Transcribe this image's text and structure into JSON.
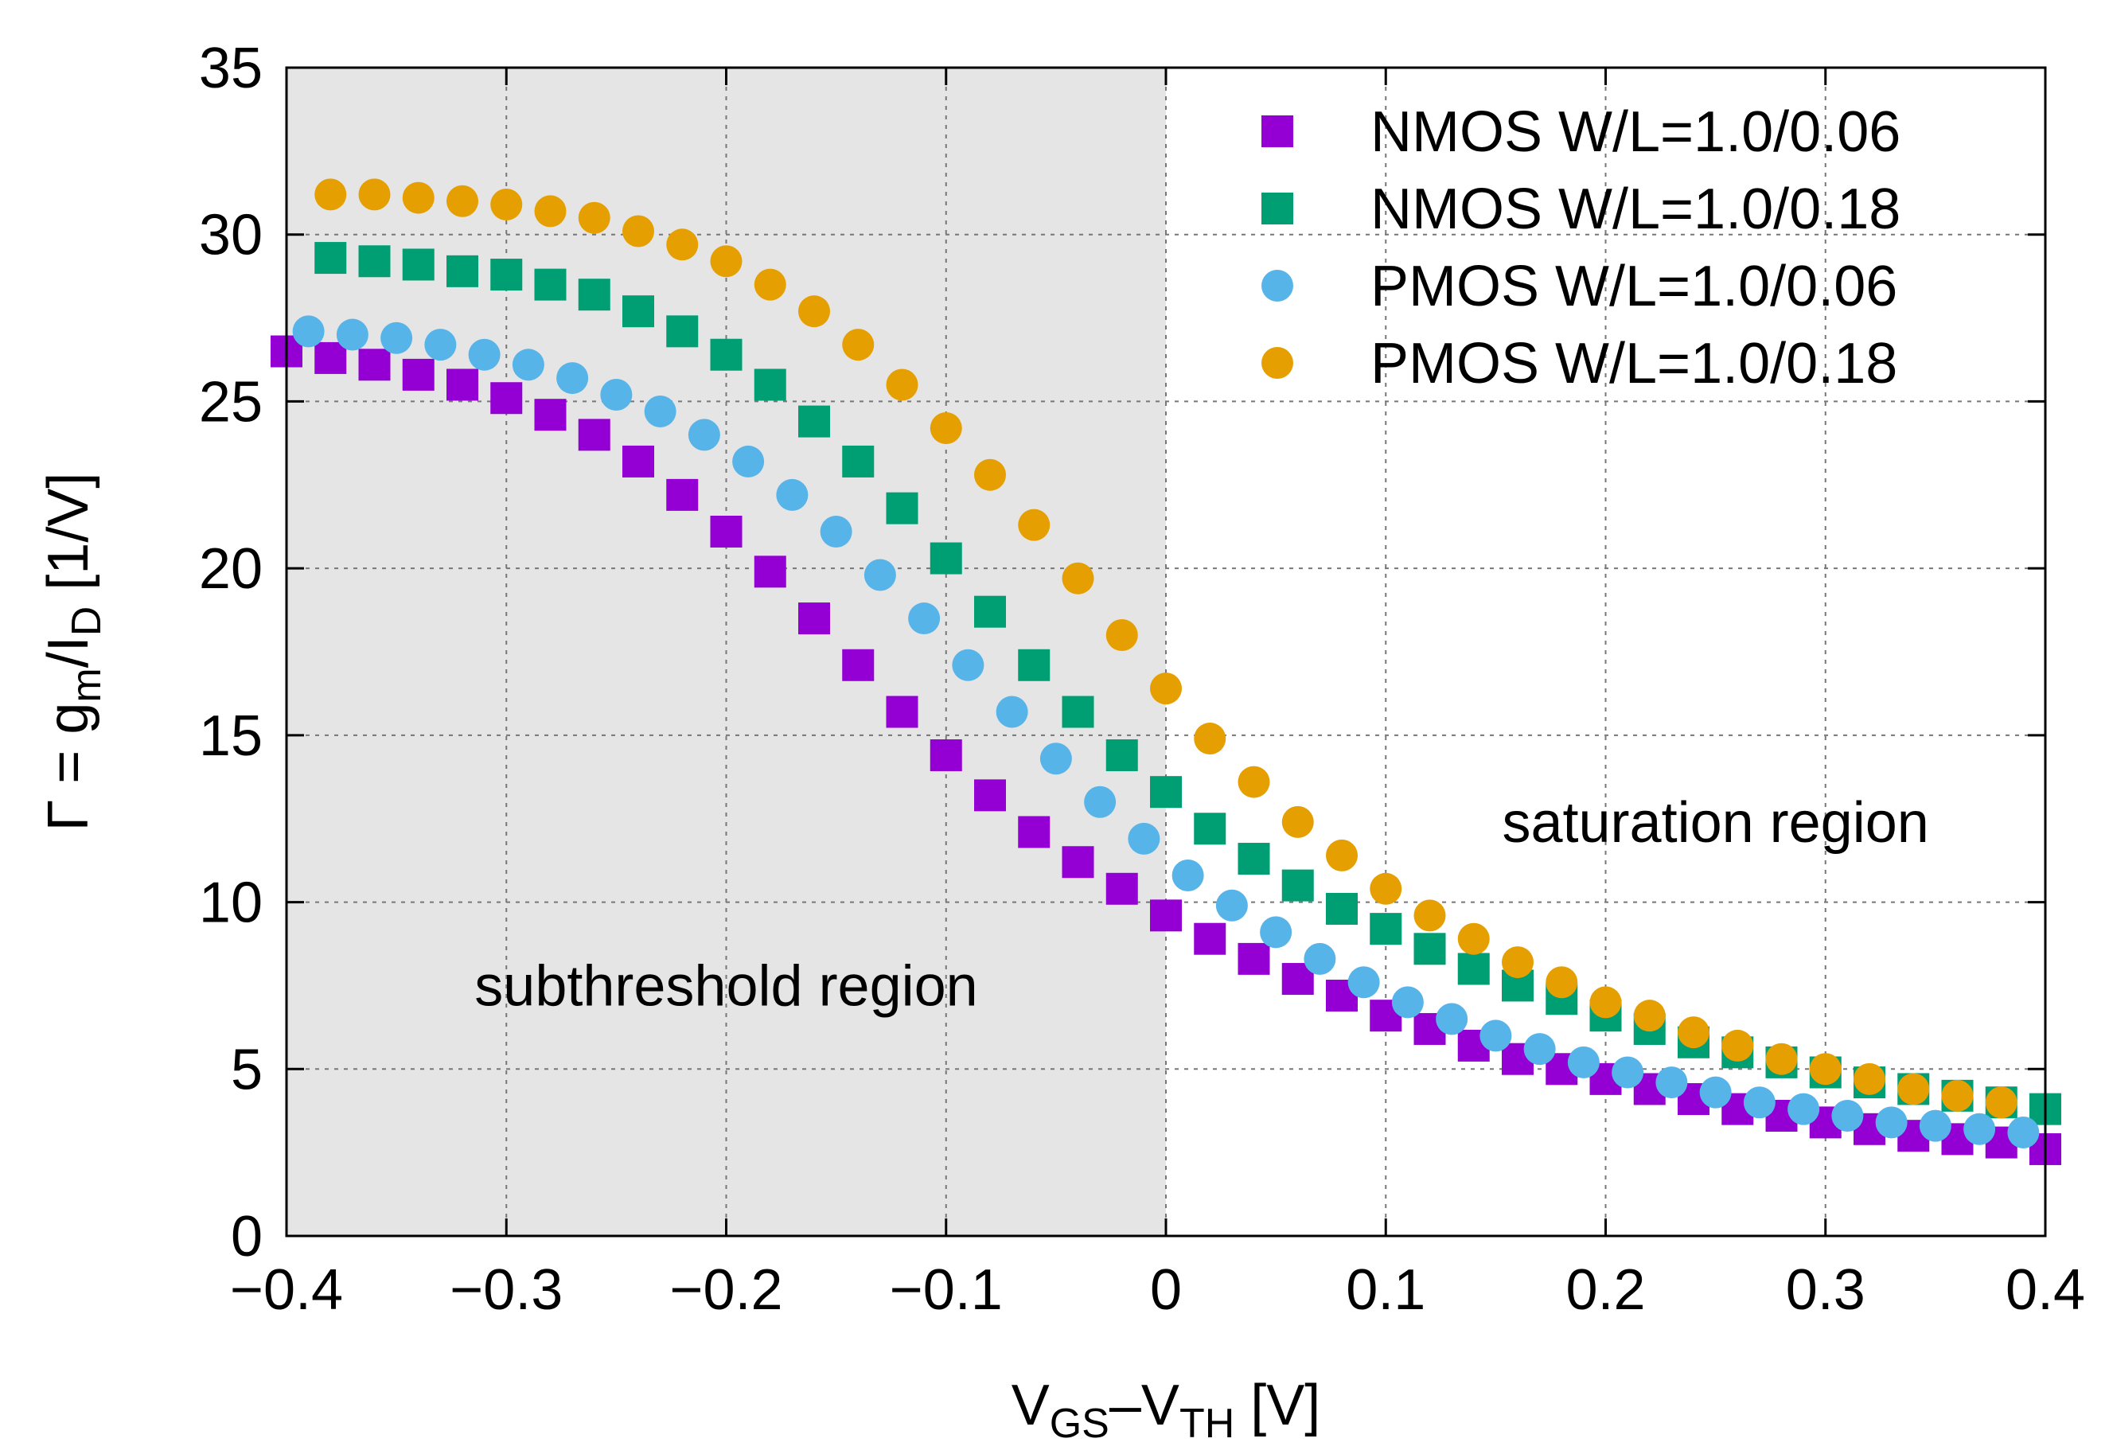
{
  "chart_data": {
    "type": "scatter",
    "title": "",
    "xlabel": {
      "parts": [
        {
          "text": "V",
          "sub": false
        },
        {
          "text": "GS",
          "sub": true
        },
        {
          "text": "–V",
          "sub": false
        },
        {
          "text": "TH",
          "sub": true
        },
        {
          "text": " [V]",
          "sub": false
        }
      ]
    },
    "ylabel": {
      "parts": [
        {
          "text": "Γ = g",
          "sub": false
        },
        {
          "text": "m",
          "sub": true
        },
        {
          "text": "/I",
          "sub": false
        },
        {
          "text": "D",
          "sub": true
        },
        {
          "text": " [1/V]",
          "sub": false
        }
      ]
    },
    "xlim": [
      -0.4,
      0.4
    ],
    "ylim": [
      0,
      35
    ],
    "xticks": [
      -0.4,
      -0.3,
      -0.2,
      -0.1,
      0,
      0.1,
      0.2,
      0.3,
      0.4
    ],
    "xtick_labels": [
      "−0.4",
      "−0.3",
      "−0.2",
      "−0.1",
      "0",
      "0.1",
      "0.2",
      "0.3",
      "0.4"
    ],
    "yticks": [
      0,
      5,
      10,
      15,
      20,
      25,
      30,
      35
    ],
    "ytick_labels": [
      "0",
      "5",
      "10",
      "15",
      "20",
      "25",
      "30",
      "35"
    ],
    "grid": true,
    "legend_position": "top-right",
    "shaded_region": {
      "x_from": -0.4,
      "x_to": 0,
      "color": "#e5e5e5"
    },
    "annotations": [
      {
        "text": "subthreshold region",
        "x": -0.2,
        "y": 7.5
      },
      {
        "text": "saturation region",
        "x": 0.25,
        "y": 12.4
      }
    ],
    "series": [
      {
        "name": "NMOS W/L=1.0/0.06",
        "marker": "square",
        "color": "#9400d3",
        "x": [
          -0.4,
          -0.38,
          -0.36,
          -0.34,
          -0.32,
          -0.3,
          -0.28,
          -0.26,
          -0.24,
          -0.22,
          -0.2,
          -0.18,
          -0.16,
          -0.14,
          -0.12,
          -0.1,
          -0.08,
          -0.06,
          -0.04,
          -0.02,
          0.0,
          0.02,
          0.04,
          0.06,
          0.08,
          0.1,
          0.12,
          0.14,
          0.16,
          0.18,
          0.2,
          0.22,
          0.24,
          0.26,
          0.28,
          0.3,
          0.32,
          0.34,
          0.36,
          0.38,
          0.4
        ],
        "y": [
          26.5,
          26.3,
          26.1,
          25.8,
          25.5,
          25.1,
          24.6,
          24.0,
          23.2,
          22.2,
          21.1,
          19.9,
          18.5,
          17.1,
          15.7,
          14.4,
          13.2,
          12.1,
          11.2,
          10.4,
          9.6,
          8.9,
          8.3,
          7.7,
          7.2,
          6.6,
          6.2,
          5.7,
          5.3,
          5.0,
          4.7,
          4.4,
          4.1,
          3.8,
          3.6,
          3.4,
          3.2,
          3.0,
          2.9,
          2.8,
          2.6
        ]
      },
      {
        "name": "NMOS W/L=1.0/0.18",
        "marker": "square",
        "color": "#009e73",
        "x": [
          -0.38,
          -0.36,
          -0.34,
          -0.32,
          -0.3,
          -0.28,
          -0.26,
          -0.24,
          -0.22,
          -0.2,
          -0.18,
          -0.16,
          -0.14,
          -0.12,
          -0.1,
          -0.08,
          -0.06,
          -0.04,
          -0.02,
          0.0,
          0.02,
          0.04,
          0.06,
          0.08,
          0.1,
          0.12,
          0.14,
          0.16,
          0.18,
          0.2,
          0.22,
          0.24,
          0.26,
          0.28,
          0.3,
          0.32,
          0.34,
          0.36,
          0.38,
          0.4
        ],
        "y": [
          29.3,
          29.2,
          29.1,
          28.9,
          28.8,
          28.5,
          28.2,
          27.7,
          27.1,
          26.4,
          25.5,
          24.4,
          23.2,
          21.8,
          20.3,
          18.7,
          17.1,
          15.7,
          14.4,
          13.3,
          12.2,
          11.3,
          10.5,
          9.8,
          9.2,
          8.6,
          8.0,
          7.5,
          7.1,
          6.6,
          6.2,
          5.8,
          5.5,
          5.2,
          4.9,
          4.6,
          4.4,
          4.2,
          4.0,
          3.8
        ]
      },
      {
        "name": "PMOS W/L=1.0/0.06",
        "marker": "circle",
        "color": "#56b4e9",
        "x": [
          -0.39,
          -0.37,
          -0.35,
          -0.33,
          -0.31,
          -0.29,
          -0.27,
          -0.25,
          -0.23,
          -0.21,
          -0.19,
          -0.17,
          -0.15,
          -0.13,
          -0.11,
          -0.09,
          -0.07,
          -0.05,
          -0.03,
          -0.01,
          0.01,
          0.03,
          0.05,
          0.07,
          0.09,
          0.11,
          0.13,
          0.15,
          0.17,
          0.19,
          0.21,
          0.23,
          0.25,
          0.27,
          0.29,
          0.31,
          0.33,
          0.35,
          0.37,
          0.39
        ],
        "y": [
          27.1,
          27.0,
          26.9,
          26.7,
          26.4,
          26.1,
          25.7,
          25.2,
          24.7,
          24.0,
          23.2,
          22.2,
          21.1,
          19.8,
          18.5,
          17.1,
          15.7,
          14.3,
          13.0,
          11.9,
          10.8,
          9.9,
          9.1,
          8.3,
          7.6,
          7.0,
          6.5,
          6.0,
          5.6,
          5.2,
          4.9,
          4.6,
          4.3,
          4.0,
          3.8,
          3.6,
          3.4,
          3.3,
          3.2,
          3.1
        ]
      },
      {
        "name": "PMOS W/L=1.0/0.18",
        "marker": "circle",
        "color": "#e69f00",
        "x": [
          -0.38,
          -0.36,
          -0.34,
          -0.32,
          -0.3,
          -0.28,
          -0.26,
          -0.24,
          -0.22,
          -0.2,
          -0.18,
          -0.16,
          -0.14,
          -0.12,
          -0.1,
          -0.08,
          -0.06,
          -0.04,
          -0.02,
          0.0,
          0.02,
          0.04,
          0.06,
          0.08,
          0.1,
          0.12,
          0.14,
          0.16,
          0.18,
          0.2,
          0.22,
          0.24,
          0.26,
          0.28,
          0.3,
          0.32,
          0.34,
          0.36,
          0.38
        ],
        "y": [
          31.2,
          31.2,
          31.1,
          31.0,
          30.9,
          30.7,
          30.5,
          30.1,
          29.7,
          29.2,
          28.5,
          27.7,
          26.7,
          25.5,
          24.2,
          22.8,
          21.3,
          19.7,
          18.0,
          16.4,
          14.9,
          13.6,
          12.4,
          11.4,
          10.4,
          9.6,
          8.9,
          8.2,
          7.6,
          7.0,
          6.6,
          6.1,
          5.7,
          5.3,
          5.0,
          4.7,
          4.4,
          4.2,
          4.0
        ]
      }
    ]
  }
}
